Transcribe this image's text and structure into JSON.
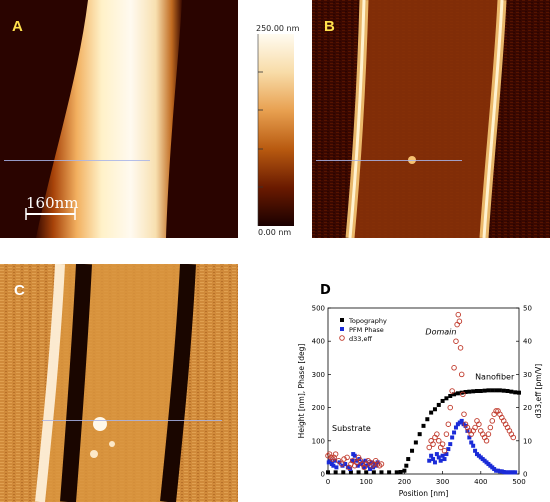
{
  "panels": {
    "a": {
      "letter": "A",
      "scalebar": "160nm"
    },
    "b": {
      "letter": "B"
    },
    "c": {
      "letter": "C"
    },
    "d": {
      "letter": "D"
    }
  },
  "colorbar": {
    "top_label": "250.00 nm",
    "bottom_label": "0.00 nm"
  },
  "chart_data": {
    "type": "scatter",
    "xlabel": "Position [nm]",
    "ylabel_left": "Height [nm], Phase [deg]",
    "ylabel_right": "d33,eff [pm/V]",
    "xlim": [
      0,
      500
    ],
    "ylim_left": [
      0,
      500
    ],
    "ylim_right": [
      0,
      50
    ],
    "x_ticks": [
      "0",
      "100",
      "200",
      "300",
      "400",
      "500"
    ],
    "y_ticks_left": [
      "0",
      "100",
      "200",
      "300",
      "400",
      "500"
    ],
    "y_ticks_right": [
      "0",
      "10",
      "20",
      "30",
      "40",
      "50"
    ],
    "legend": [
      "Topography",
      "PFM Phase",
      "d33,eff"
    ],
    "annotations": [
      "Substrate",
      "Domain",
      "Nanofiber"
    ],
    "series": [
      {
        "name": "Topography",
        "marker": "filled-square",
        "color": "#000000",
        "axis": "left",
        "x": [
          0,
          20,
          40,
          60,
          80,
          100,
          120,
          140,
          160,
          180,
          190,
          200,
          205,
          210,
          220,
          230,
          240,
          250,
          260,
          270,
          280,
          290,
          300,
          310,
          320,
          330,
          340,
          350,
          360,
          370,
          380,
          390,
          400,
          410,
          420,
          430,
          440,
          450,
          460,
          470,
          480,
          490,
          500
        ],
        "y": [
          5,
          5,
          5,
          5,
          5,
          5,
          5,
          5,
          5,
          5,
          6,
          10,
          25,
          45,
          70,
          95,
          120,
          145,
          165,
          185,
          195,
          208,
          220,
          228,
          235,
          240,
          243,
          245,
          247,
          248,
          249,
          250,
          250,
          251,
          252,
          252,
          252,
          252,
          251,
          250,
          248,
          246,
          245
        ]
      },
      {
        "name": "PFM Phase",
        "marker": "filled-square",
        "color": "#1a2bd8",
        "axis": "left",
        "x": [
          2,
          6,
          10,
          14,
          18,
          22,
          30,
          38,
          45,
          52,
          58,
          63,
          66,
          70,
          74,
          78,
          82,
          86,
          90,
          94,
          98,
          102,
          106,
          110,
          114,
          118,
          122,
          126,
          130,
          265,
          270,
          275,
          280,
          285,
          290,
          295,
          300,
          305,
          310,
          315,
          320,
          325,
          330,
          335,
          340,
          345,
          350,
          355,
          360,
          365,
          370,
          375,
          380,
          385,
          390,
          395,
          400,
          405,
          410,
          415,
          420,
          425,
          430,
          435,
          440,
          445,
          450,
          455,
          460,
          465,
          470,
          475,
          480,
          485,
          490
        ],
        "y": [
          35,
          40,
          30,
          25,
          40,
          20,
          35,
          25,
          30,
          20,
          15,
          40,
          60,
          55,
          40,
          25,
          45,
          30,
          35,
          20,
          40,
          25,
          30,
          15,
          35,
          20,
          30,
          25,
          35,
          40,
          55,
          45,
          35,
          60,
          50,
          40,
          55,
          45,
          60,
          75,
          90,
          110,
          125,
          140,
          150,
          155,
          160,
          150,
          145,
          130,
          110,
          95,
          85,
          70,
          60,
          55,
          50,
          45,
          40,
          35,
          30,
          25,
          20,
          15,
          10,
          10,
          8,
          8,
          6,
          5,
          5,
          5,
          5,
          5,
          5
        ]
      },
      {
        "name": "d33,eff",
        "marker": "open-circle",
        "color": "#c0392b",
        "axis": "right",
        "x": [
          0,
          4,
          8,
          12,
          16,
          20,
          28,
          36,
          42,
          50,
          55,
          60,
          65,
          70,
          75,
          80,
          85,
          90,
          95,
          100,
          105,
          110,
          115,
          120,
          125,
          130,
          135,
          140,
          265,
          270,
          275,
          280,
          285,
          290,
          295,
          300,
          305,
          310,
          315,
          320,
          325,
          330,
          335,
          338,
          341,
          344,
          347,
          350,
          353,
          356,
          360,
          365,
          370,
          375,
          380,
          385,
          390,
          395,
          400,
          405,
          410,
          415,
          420,
          425,
          430,
          435,
          440,
          445,
          450,
          455,
          460,
          465,
          470,
          475,
          480,
          485
        ],
        "y": [
          5.5,
          6,
          5,
          4.5,
          5,
          6,
          4,
          3,
          4.5,
          5,
          2,
          3,
          4,
          2.5,
          3.5,
          5,
          4,
          3,
          2,
          3,
          4,
          3.5,
          2.5,
          3,
          4,
          3,
          2.5,
          3,
          8,
          10,
          9,
          11,
          12,
          10,
          8,
          9,
          7,
          12,
          15,
          20,
          25,
          32,
          40,
          45,
          48,
          46,
          38,
          30,
          24,
          18,
          15,
          14,
          13,
          12,
          13,
          14,
          16,
          15,
          13,
          12,
          11,
          10,
          12,
          14,
          16,
          18,
          19,
          19,
          18,
          17,
          16,
          15,
          14,
          13,
          12,
          11
        ]
      }
    ]
  }
}
